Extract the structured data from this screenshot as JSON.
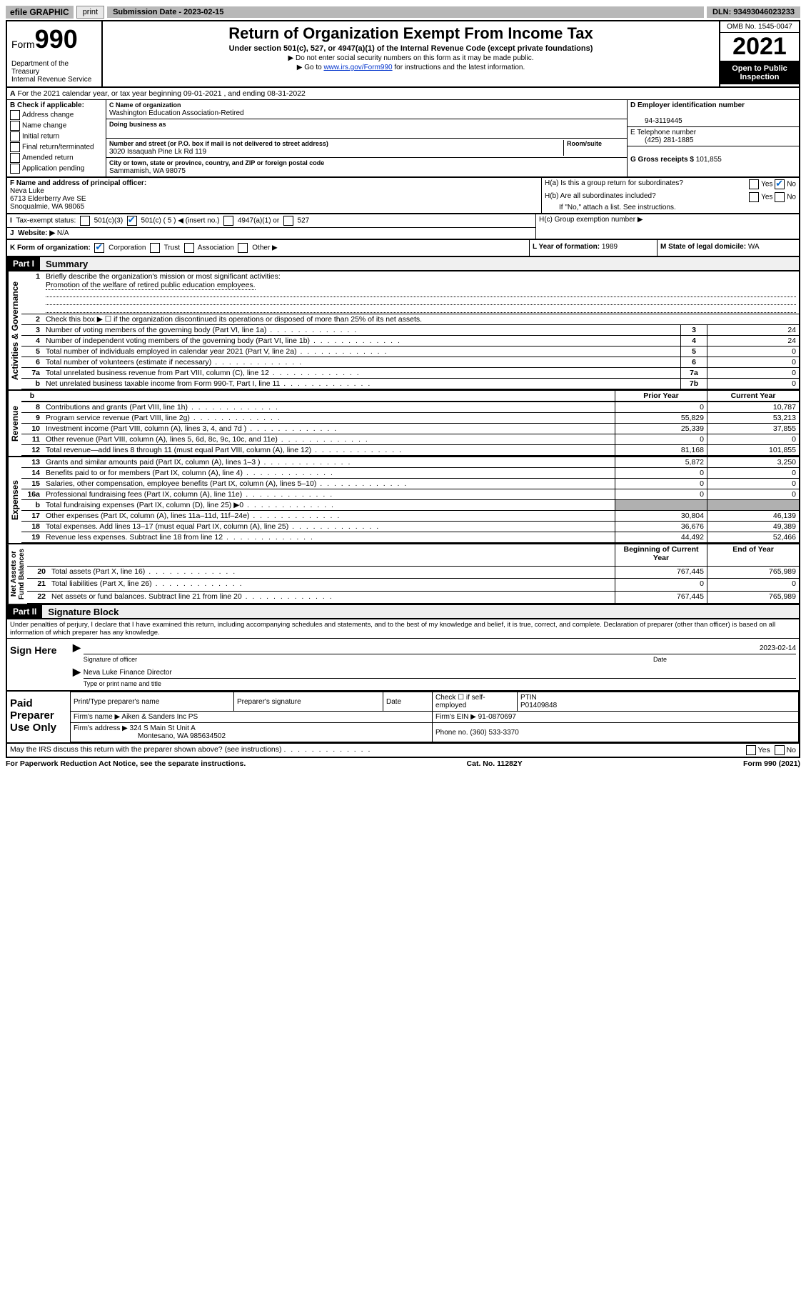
{
  "topbar": {
    "efile": "efile GRAPHIC",
    "print": "print",
    "submission": "Submission Date - 2023-02-15",
    "dln": "DLN: 93493046023233"
  },
  "header": {
    "form_word": "Form",
    "form_num": "990",
    "dept": "Department of the Treasury\nInternal Revenue Service",
    "title": "Return of Organization Exempt From Income Tax",
    "subtitle": "Under section 501(c), 527, or 4947(a)(1) of the Internal Revenue Code (except private foundations)",
    "instr1": "▶ Do not enter social security numbers on this form as it may be made public.",
    "instr2_pre": "▶ Go to ",
    "instr2_link": "www.irs.gov/Form990",
    "instr2_post": " for instructions and the latest information.",
    "omb": "OMB No. 1545-0047",
    "year": "2021",
    "open": "Open to Public Inspection"
  },
  "period": "For the 2021 calendar year, or tax year beginning 09-01-2021   , and ending 08-31-2022",
  "checkB": {
    "label": "B Check if applicable:",
    "items": [
      "Address change",
      "Name change",
      "Initial return",
      "Final return/terminated",
      "Amended return",
      "Application pending"
    ]
  },
  "boxC": {
    "name_label": "C Name of organization",
    "name": "Washington Education Association-Retired",
    "dba_label": "Doing business as",
    "dba": "",
    "addr_label": "Number and street (or P.O. box if mail is not delivered to street address)",
    "room_label": "Room/suite",
    "addr": "3020 Issaquah Pine Lk Rd 119",
    "city_label": "City or town, state or province, country, and ZIP or foreign postal code",
    "city": "Sammamish, WA  98075"
  },
  "boxD": {
    "label": "D Employer identification number",
    "value": "94-3119445"
  },
  "boxE": {
    "label": "E Telephone number",
    "value": "(425) 281-1885"
  },
  "boxG": {
    "label": "G Gross receipts $",
    "value": "101,855"
  },
  "boxF": {
    "label": "F Name and address of principal officer:",
    "name": "Neva Luke",
    "addr1": "6713 Elderberry Ave SE",
    "addr2": "Snoqualmie, WA  98065"
  },
  "boxH": {
    "a": "H(a)  Is this a group return for subordinates?",
    "b": "H(b)  Are all subordinates included?",
    "b_note": "If \"No,\" attach a list. See instructions.",
    "c": "H(c)  Group exemption number ▶",
    "yes": "Yes",
    "no": "No"
  },
  "boxI": {
    "label": "Tax-exempt status:",
    "opts": [
      "501(c)(3)",
      "501(c) ( 5 ) ◀ (insert no.)",
      "4947(a)(1) or",
      "527"
    ]
  },
  "boxJ": {
    "label": "Website: ▶",
    "value": "N/A"
  },
  "boxK": {
    "label": "K Form of organization:",
    "opts": [
      "Corporation",
      "Trust",
      "Association",
      "Other ▶"
    ]
  },
  "boxL": {
    "label": "L Year of formation:",
    "value": "1989"
  },
  "boxM": {
    "label": "M State of legal domicile:",
    "value": "WA"
  },
  "part1": {
    "header": "Part I",
    "title": "Summary",
    "vlabels": {
      "gov": "Activities & Governance",
      "rev": "Revenue",
      "exp": "Expenses",
      "net": "Net Assets or\nFund Balances"
    },
    "l1_label": "Briefly describe the organization's mission or most significant activities:",
    "l1_text": "Promotion of the welfare of retired public education employees.",
    "l2": "Check this box ▶ ☐  if the organization discontinued its operations or disposed of more than 25% of its net assets.",
    "rows_top": [
      {
        "n": "3",
        "desc": "Number of voting members of the governing body (Part VI, line 1a)",
        "box": "3",
        "val": "24"
      },
      {
        "n": "4",
        "desc": "Number of independent voting members of the governing body (Part VI, line 1b)",
        "box": "4",
        "val": "24"
      },
      {
        "n": "5",
        "desc": "Total number of individuals employed in calendar year 2021 (Part V, line 2a)",
        "box": "5",
        "val": "0"
      },
      {
        "n": "6",
        "desc": "Total number of volunteers (estimate if necessary)",
        "box": "6",
        "val": "0"
      },
      {
        "n": "7a",
        "desc": "Total unrelated business revenue from Part VIII, column (C), line 12",
        "box": "7a",
        "val": "0"
      },
      {
        "n": "b",
        "desc": "Net unrelated business taxable income from Form 990-T, Part I, line 11",
        "box": "7b",
        "val": "0"
      }
    ],
    "col_headers": {
      "prior": "Prior Year",
      "current": "Current Year",
      "boy": "Beginning of Current Year",
      "eoy": "End of Year"
    },
    "rows_rev": [
      {
        "n": "8",
        "desc": "Contributions and grants (Part VIII, line 1h)",
        "prior": "0",
        "cur": "10,787"
      },
      {
        "n": "9",
        "desc": "Program service revenue (Part VIII, line 2g)",
        "prior": "55,829",
        "cur": "53,213"
      },
      {
        "n": "10",
        "desc": "Investment income (Part VIII, column (A), lines 3, 4, and 7d )",
        "prior": "25,339",
        "cur": "37,855"
      },
      {
        "n": "11",
        "desc": "Other revenue (Part VIII, column (A), lines 5, 6d, 8c, 9c, 10c, and 11e)",
        "prior": "0",
        "cur": "0"
      },
      {
        "n": "12",
        "desc": "Total revenue—add lines 8 through 11 (must equal Part VIII, column (A), line 12)",
        "prior": "81,168",
        "cur": "101,855"
      }
    ],
    "rows_exp": [
      {
        "n": "13",
        "desc": "Grants and similar amounts paid (Part IX, column (A), lines 1–3 )",
        "prior": "5,872",
        "cur": "3,250"
      },
      {
        "n": "14",
        "desc": "Benefits paid to or for members (Part IX, column (A), line 4)",
        "prior": "0",
        "cur": "0"
      },
      {
        "n": "15",
        "desc": "Salaries, other compensation, employee benefits (Part IX, column (A), lines 5–10)",
        "prior": "0",
        "cur": "0"
      },
      {
        "n": "16a",
        "desc": "Professional fundraising fees (Part IX, column (A), line 11e)",
        "prior": "0",
        "cur": "0"
      },
      {
        "n": "b",
        "desc": "Total fundraising expenses (Part IX, column (D), line 25) ▶0",
        "prior": "shaded",
        "cur": "shaded"
      },
      {
        "n": "17",
        "desc": "Other expenses (Part IX, column (A), lines 11a–11d, 11f–24e)",
        "prior": "30,804",
        "cur": "46,139"
      },
      {
        "n": "18",
        "desc": "Total expenses. Add lines 13–17 (must equal Part IX, column (A), line 25)",
        "prior": "36,676",
        "cur": "49,389"
      },
      {
        "n": "19",
        "desc": "Revenue less expenses. Subtract line 18 from line 12",
        "prior": "44,492",
        "cur": "52,466"
      }
    ],
    "rows_net": [
      {
        "n": "20",
        "desc": "Total assets (Part X, line 16)",
        "prior": "767,445",
        "cur": "765,989"
      },
      {
        "n": "21",
        "desc": "Total liabilities (Part X, line 26)",
        "prior": "0",
        "cur": "0"
      },
      {
        "n": "22",
        "desc": "Net assets or fund balances. Subtract line 21 from line 20",
        "prior": "767,445",
        "cur": "765,989"
      }
    ]
  },
  "part2": {
    "header": "Part II",
    "title": "Signature Block",
    "decl": "Under penalties of perjury, I declare that I have examined this return, including accompanying schedules and statements, and to the best of my knowledge and belief, it is true, correct, and complete. Declaration of preparer (other than officer) is based on all information of which preparer has any knowledge.",
    "sign_here": "Sign Here",
    "sig_officer": "Signature of officer",
    "sig_date": "2023-02-14",
    "date_label": "Date",
    "officer_name": "Neva Luke  Finance Director",
    "type_label": "Type or print name and title",
    "paid": "Paid Preparer Use Only",
    "prep_headers": [
      "Print/Type preparer's name",
      "Preparer's signature",
      "Date"
    ],
    "check_if": "Check ☐ if self-employed",
    "ptin_label": "PTIN",
    "ptin": "P01409848",
    "firm_name_label": "Firm's name    ▶",
    "firm_name": "Aiken & Sanders Inc PS",
    "firm_ein_label": "Firm's EIN ▶",
    "firm_ein": "91-0870697",
    "firm_addr_label": "Firm's address ▶",
    "firm_addr1": "324 S Main St Unit A",
    "firm_addr2": "Montesano, WA  985634502",
    "phone_label": "Phone no.",
    "phone": "(360) 533-3370",
    "discuss": "May the IRS discuss this return with the preparer shown above? (see instructions)"
  },
  "footer": {
    "pra": "For Paperwork Reduction Act Notice, see the separate instructions.",
    "cat": "Cat. No. 11282Y",
    "form": "Form 990 (2021)"
  }
}
